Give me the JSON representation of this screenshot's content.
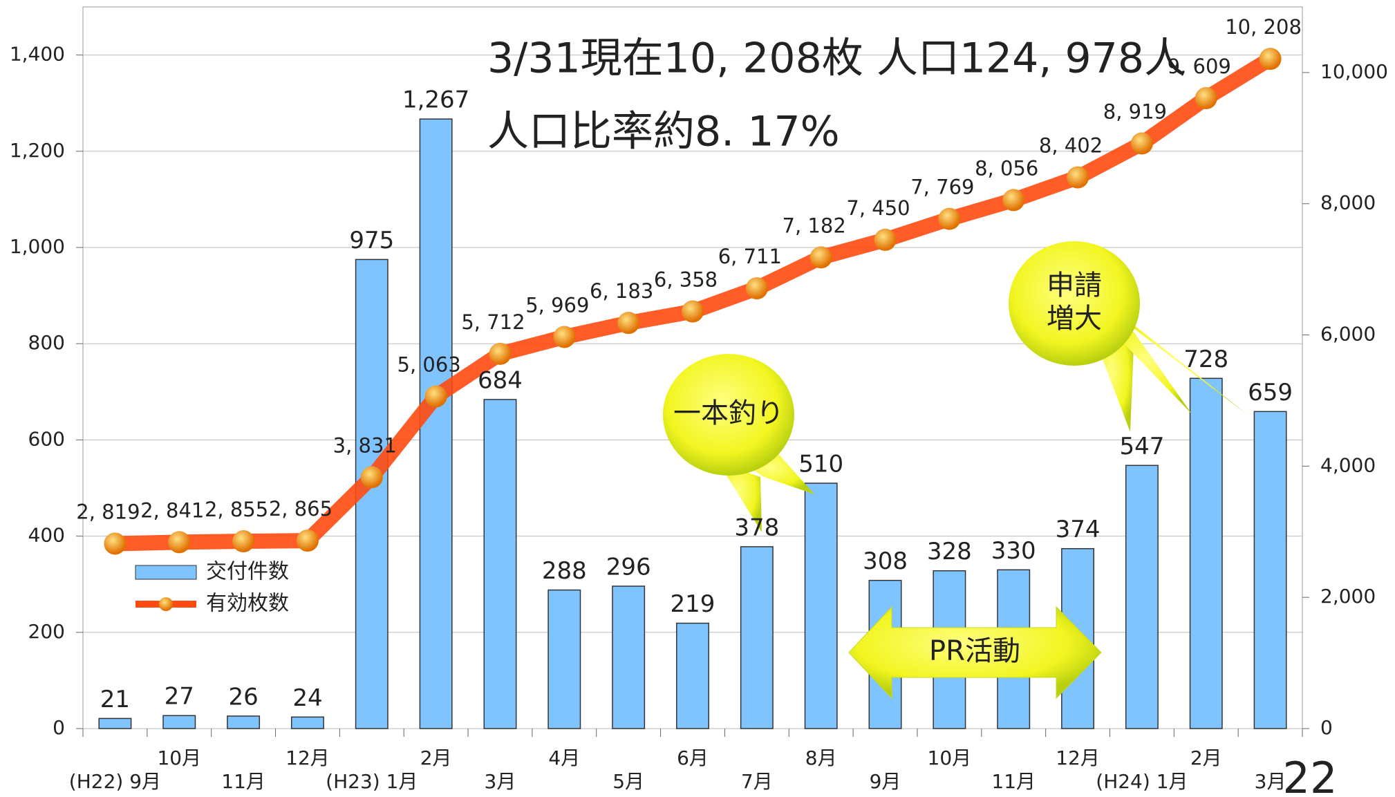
{
  "chart_data": {
    "type": "bar_line",
    "title": "3/31現在10, 208枚  人口124, 978人",
    "subtitle": "人口比率約8. 17%",
    "categories": [
      "(H22) 9月",
      "10月",
      "11月",
      "12月",
      "(H23) 1月",
      "2月",
      "3月",
      "4月",
      "5月",
      "6月",
      "7月",
      "8月",
      "9月",
      "10月",
      "11月",
      "12月",
      "(H24) 1月",
      "2月",
      "3月"
    ],
    "series": [
      {
        "name": "交付件数",
        "color": "#80c4ff",
        "values": [
          21,
          27,
          26,
          24,
          975,
          1267,
          684,
          288,
          296,
          219,
          378,
          510,
          308,
          328,
          330,
          374,
          547,
          728,
          659
        ],
        "value_labels": [
          "21",
          "27",
          "26",
          "24",
          "975",
          "1,267",
          "684",
          "288",
          "296",
          "219",
          "378",
          "510",
          "308",
          "328",
          "330",
          "374",
          "547",
          "728",
          "659"
        ]
      },
      {
        "name": "有効枚数",
        "color": "#ff4a10",
        "axis": "y2",
        "values": [
          2819,
          2841,
          2855,
          2865,
          3831,
          5063,
          5712,
          5969,
          6183,
          6358,
          6711,
          7182,
          7450,
          7769,
          8056,
          8402,
          8919,
          9609,
          10208
        ],
        "value_labels": [
          "2, 819",
          "2, 841",
          "2, 855",
          "2, 865",
          "3, 831",
          "5, 063",
          "5, 712",
          "5, 969",
          "6, 183",
          "6, 358",
          "6, 711",
          "7, 182",
          "7, 450",
          "7, 769",
          "8, 056",
          "8, 402",
          "8, 919",
          "9, 609",
          "10, 208"
        ]
      }
    ],
    "ylim": [
      0,
      1500
    ],
    "yticks": [
      0,
      200,
      400,
      600,
      800,
      {
        "value": 1000,
        "label": "1,000"
      },
      {
        "value": 1200,
        "label": "1,200"
      },
      {
        "value": 1400,
        "label": "1,400"
      }
    ],
    "y2lim": [
      0,
      11000
    ],
    "y2ticks": [
      0,
      {
        "value": 2000,
        "label": "2,000"
      },
      {
        "value": 4000,
        "label": "4,000"
      },
      {
        "value": 6000,
        "label": "6,000"
      },
      {
        "value": 8000,
        "label": "8,000"
      },
      {
        "value": 10000,
        "label": "10,000"
      }
    ],
    "grid": true,
    "legend": "left",
    "annotations": [
      "一本釣り",
      "申請",
      "増大",
      "PR活動",
      "22"
    ]
  }
}
